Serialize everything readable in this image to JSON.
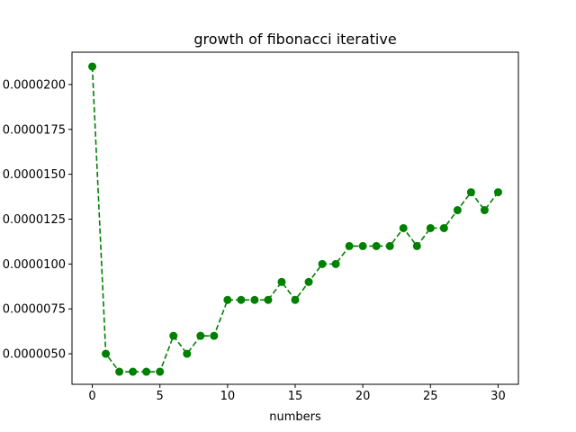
{
  "chart_data": {
    "type": "line",
    "title": "growth of fibonacci iterative",
    "xlabel": "numbers",
    "ylabel": "",
    "xlim": [
      -1.5,
      31.5
    ],
    "ylim": [
      3.3e-06,
      2.18e-05
    ],
    "x_ticks": [
      0,
      5,
      10,
      15,
      20,
      25,
      30
    ],
    "y_ticks": [
      5e-06,
      7.5e-06,
      1e-05,
      1.25e-05,
      1.5e-05,
      1.75e-05,
      2e-05
    ],
    "y_tick_labels": [
      "0.0000050",
      "0.0000075",
      "0.0000100",
      "0.0000125",
      "0.0000150",
      "0.0000175",
      "0.0000200"
    ],
    "grid": false,
    "series": [
      {
        "color": "#008000",
        "line_style": "dashed",
        "marker": "circle",
        "x": [
          0,
          1,
          2,
          3,
          4,
          5,
          6,
          7,
          8,
          9,
          10,
          11,
          12,
          13,
          14,
          15,
          16,
          17,
          18,
          19,
          20,
          21,
          22,
          23,
          24,
          25,
          26,
          27,
          28,
          29,
          30
        ],
        "values": [
          2.1e-05,
          5e-06,
          4e-06,
          4e-06,
          4e-06,
          4e-06,
          6e-06,
          5e-06,
          6e-06,
          6e-06,
          8e-06,
          8e-06,
          8e-06,
          8e-06,
          9e-06,
          8e-06,
          9e-06,
          1e-05,
          1e-05,
          1.1e-05,
          1.1e-05,
          1.1e-05,
          1.1e-05,
          1.2e-05,
          1.1e-05,
          1.2e-05,
          1.2e-05,
          1.3e-05,
          1.4e-05,
          1.3e-05,
          1.4e-05
        ]
      }
    ]
  }
}
